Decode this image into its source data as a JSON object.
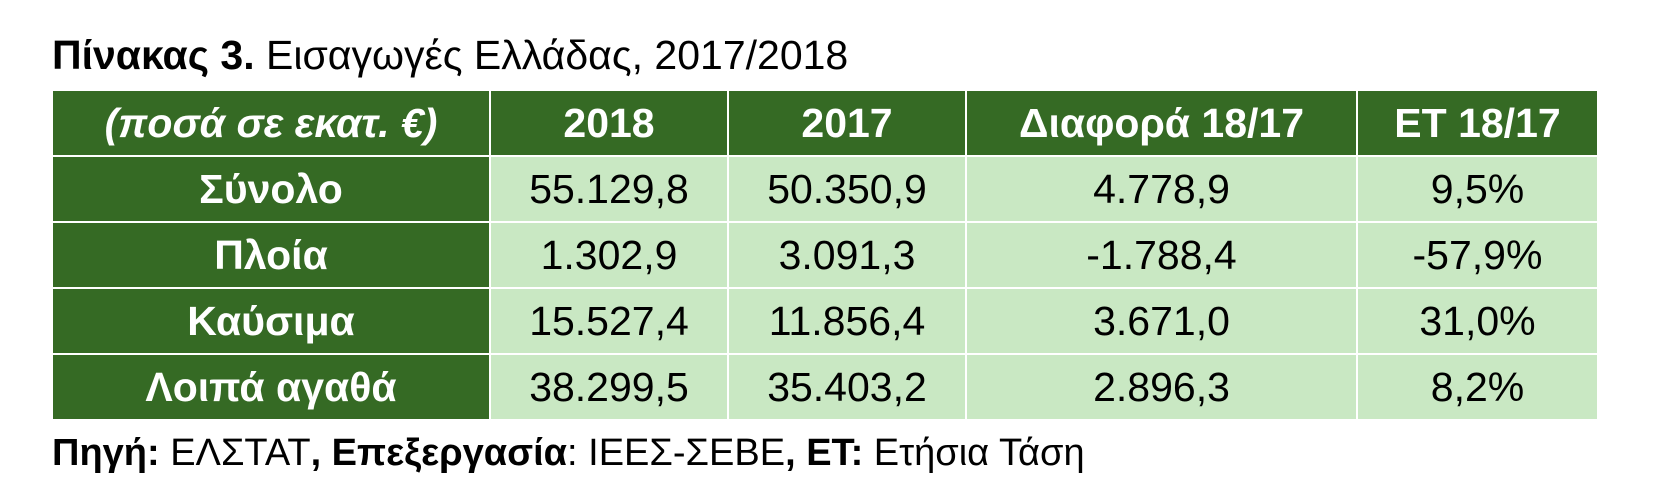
{
  "title": {
    "label": "Πίνακας 3.",
    "text": " Εισαγωγές Ελλάδας, 2017/2018"
  },
  "table": {
    "headers": [
      "(ποσά σε εκατ. €)",
      "2018",
      "2017",
      "Διαφορά 18/17",
      "ΕΤ 18/17"
    ],
    "rows": [
      {
        "label": "Σύνολο",
        "values": [
          "55.129,8",
          "50.350,9",
          "4.778,9",
          "9,5%"
        ]
      },
      {
        "label": "Πλοία",
        "values": [
          "1.302,9",
          "3.091,3",
          "-1.788,4",
          "-57,9%"
        ]
      },
      {
        "label": "Καύσιμα",
        "values": [
          "15.527,4",
          "11.856,4",
          "3.671,0",
          "31,0%"
        ]
      },
      {
        "label": "Λοιπά αγαθά",
        "values": [
          "38.299,5",
          "35.403,2",
          "2.896,3",
          "8,2%"
        ]
      }
    ]
  },
  "source": {
    "label1": "Πηγή:",
    "text1": " ΕΛΣΤΑΤ",
    "label2": ", Επεξεργασία",
    "text2": ": ΙΕΕΣ-ΣΕΒΕ",
    "label3": ", ΕΤ:",
    "text3": " Ετήσια Τάση"
  },
  "colors": {
    "header_green": "#356a24",
    "cell_green": "#c9e8c3"
  }
}
